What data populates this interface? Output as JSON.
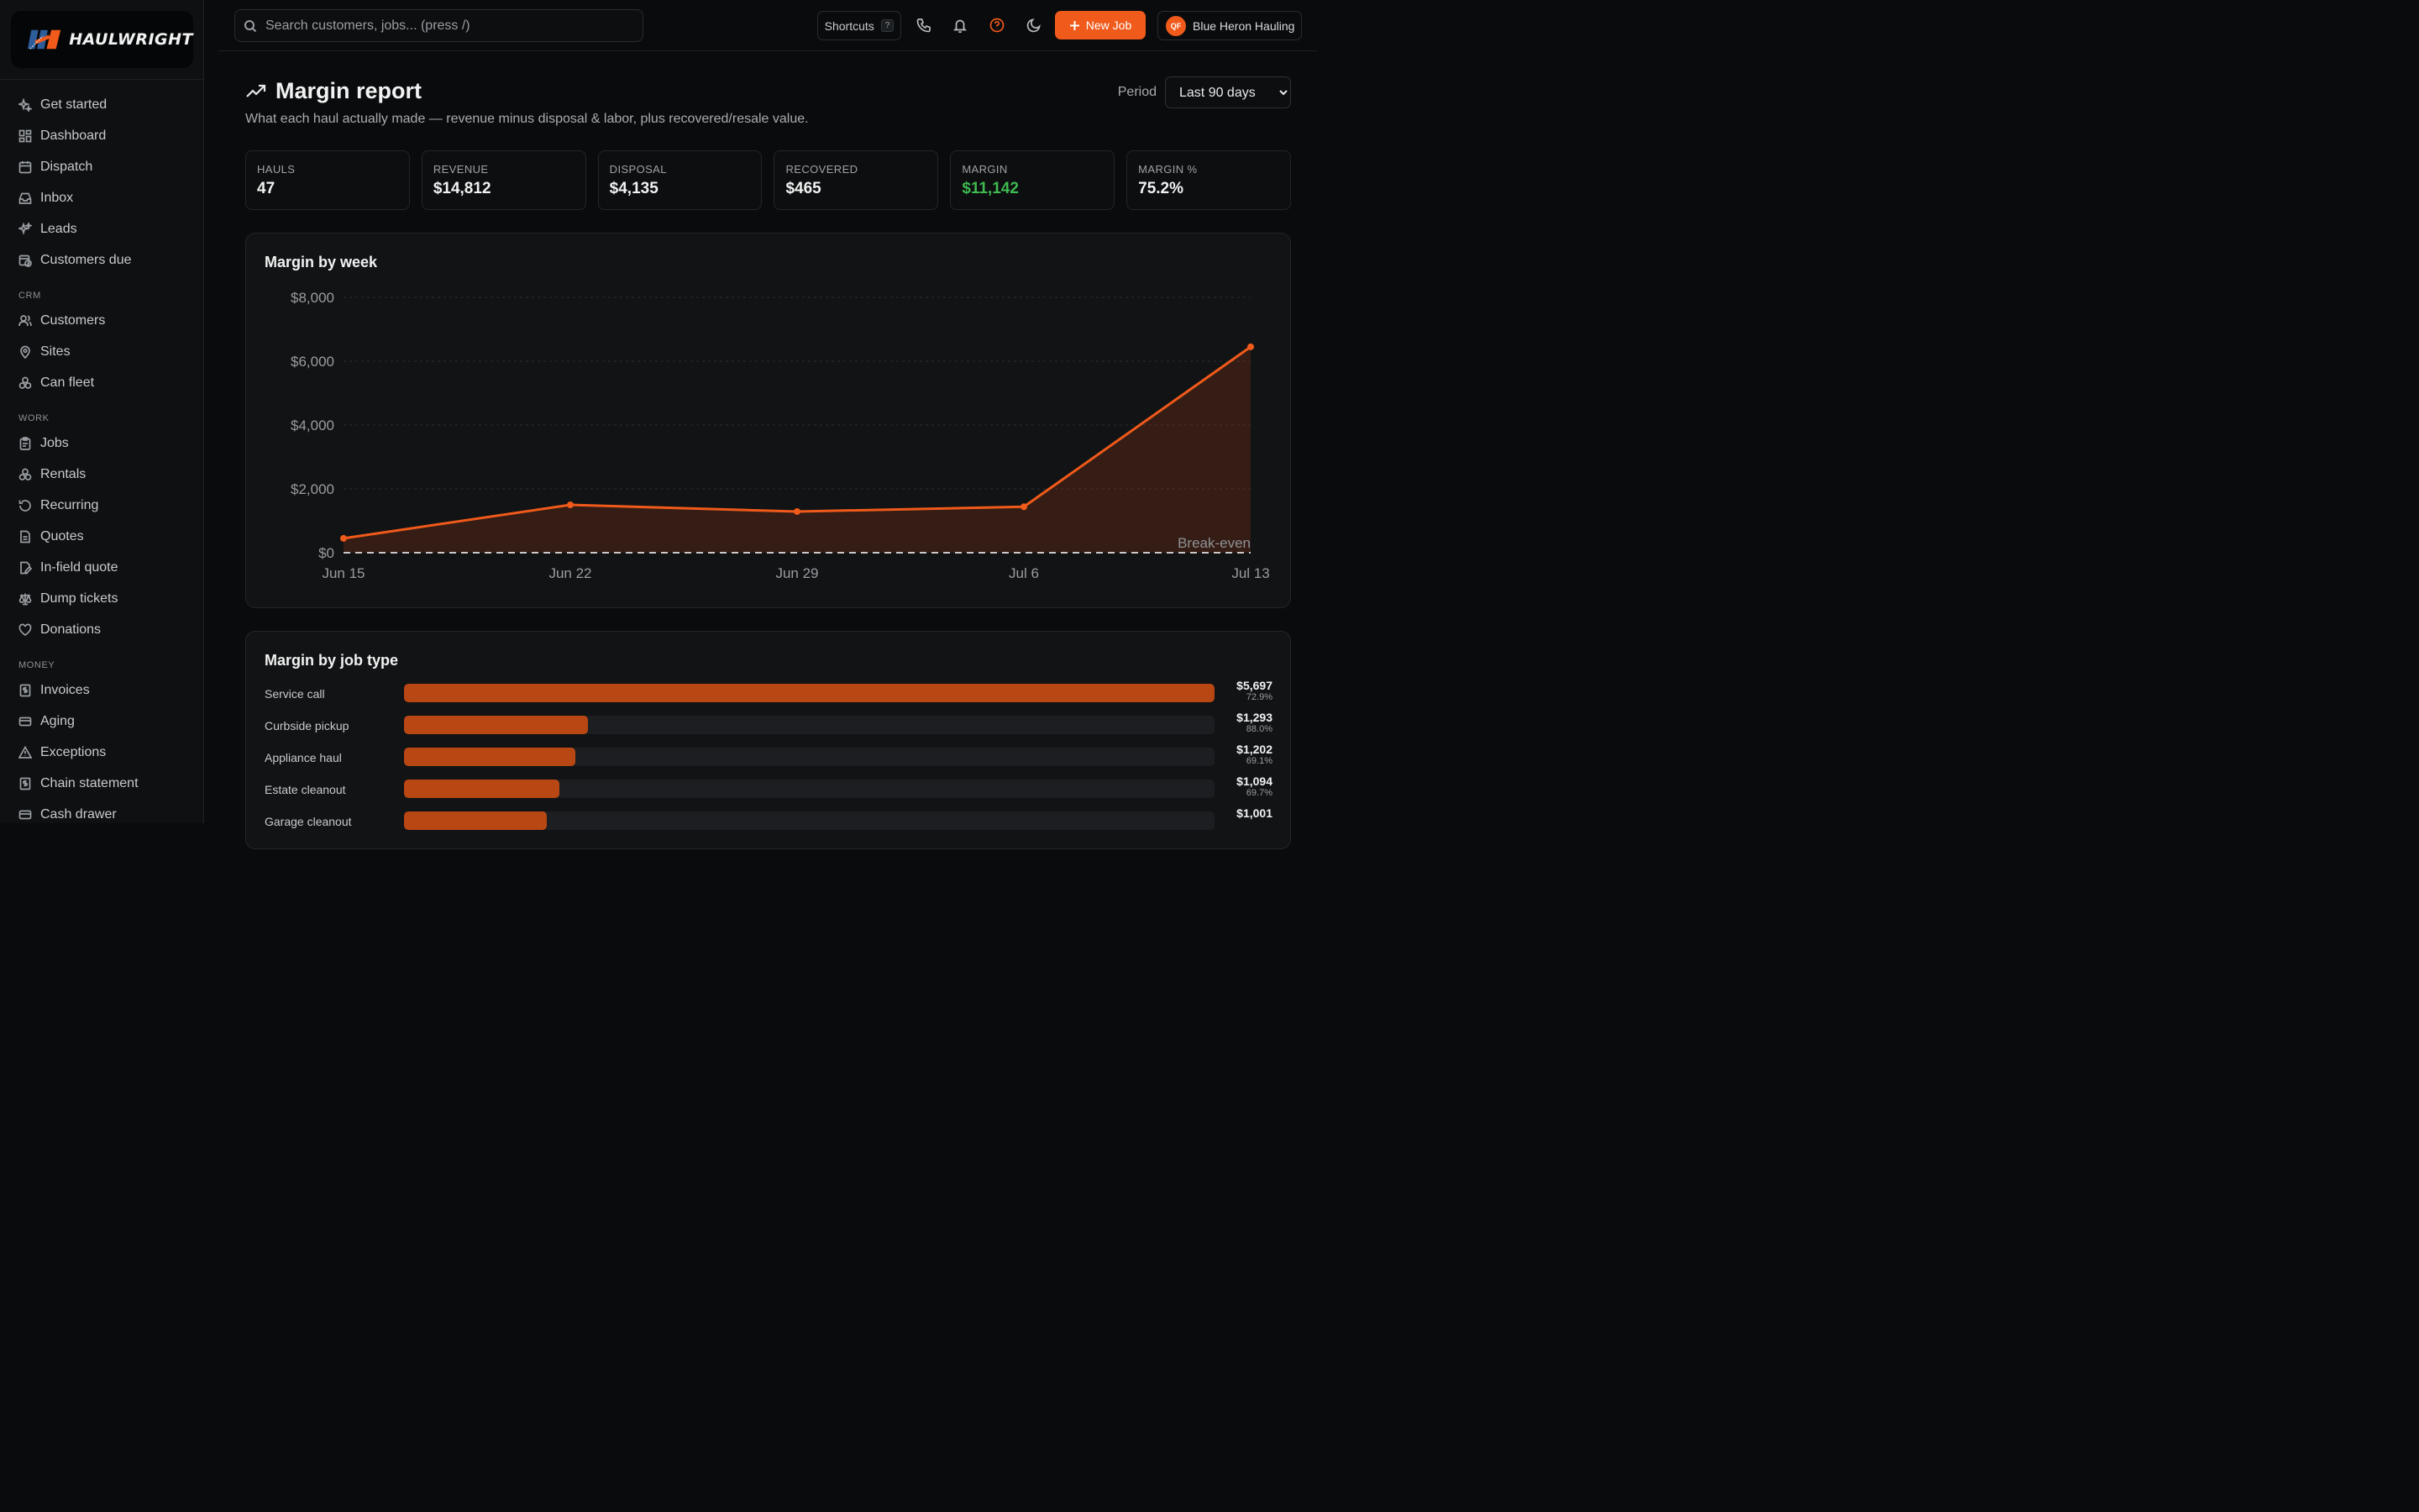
{
  "brand": {
    "name": "HAULWRIGHT",
    "accent": "#f05a1a"
  },
  "sidebar": {
    "top_items": [
      {
        "label": "Get started",
        "icon": "sparkles-icon"
      },
      {
        "label": "Dashboard",
        "icon": "dashboard-icon"
      },
      {
        "label": "Dispatch",
        "icon": "calendar-icon"
      },
      {
        "label": "Inbox",
        "icon": "inbox-icon"
      },
      {
        "label": "Leads",
        "icon": "sparkles-icon"
      },
      {
        "label": "Customers due",
        "icon": "calendar-clock-icon"
      }
    ],
    "crm_label": "CRM",
    "crm_items": [
      {
        "label": "Customers",
        "icon": "users-icon"
      },
      {
        "label": "Sites",
        "icon": "map-pin-icon"
      },
      {
        "label": "Can fleet",
        "icon": "cans-icon"
      }
    ],
    "work_label": "WORK",
    "work_items": [
      {
        "label": "Jobs",
        "icon": "clipboard-icon"
      },
      {
        "label": "Rentals",
        "icon": "cans-icon"
      },
      {
        "label": "Recurring",
        "icon": "refresh-icon"
      },
      {
        "label": "Quotes",
        "icon": "document-icon"
      },
      {
        "label": "In-field quote",
        "icon": "edit-document-icon"
      },
      {
        "label": "Dump tickets",
        "icon": "scale-icon"
      },
      {
        "label": "Donations",
        "icon": "heart-icon"
      }
    ],
    "money_label": "MONEY",
    "money_items": [
      {
        "label": "Invoices",
        "icon": "invoice-icon"
      },
      {
        "label": "Aging",
        "icon": "card-icon"
      },
      {
        "label": "Exceptions",
        "icon": "warning-icon"
      },
      {
        "label": "Chain statement",
        "icon": "invoice-icon"
      },
      {
        "label": "Cash drawer",
        "icon": "card-icon"
      }
    ]
  },
  "topbar": {
    "search_placeholder": "Search customers, jobs... (press /)",
    "shortcuts_label": "Shortcuts",
    "shortcuts_key": "?",
    "new_job_label": "New Job",
    "account_initials": "QF",
    "account_name": "Blue Heron Hauling"
  },
  "page": {
    "title": "Margin report",
    "subtitle": "What each haul actually made — revenue minus disposal & labor, plus recovered/resale value.",
    "period_label": "Period",
    "period_value": "Last 90 days"
  },
  "kpis": [
    {
      "label": "HAULS",
      "value": "47"
    },
    {
      "label": "REVENUE",
      "value": "$14,812"
    },
    {
      "label": "DISPOSAL",
      "value": "$4,135"
    },
    {
      "label": "RECOVERED",
      "value": "$465"
    },
    {
      "label": "MARGIN",
      "value": "$11,142",
      "color": "#3fb950"
    },
    {
      "label": "MARGIN %",
      "value": "75.2%"
    }
  ],
  "chart_data": [
    {
      "type": "area",
      "title": "Margin by week",
      "x": [
        "Jun 15",
        "Jun 22",
        "Jun 29",
        "Jul 6",
        "Jul 13"
      ],
      "series": [
        {
          "values": [
            450,
            1500,
            1290,
            1440,
            6450
          ]
        }
      ],
      "ylim": [
        0,
        8000
      ],
      "yticks": [
        "$0",
        "$2,000",
        "$4,000",
        "$6,000",
        "$8,000"
      ],
      "reference_line_label": "Break-even",
      "grid": true,
      "line_color": "#f05a1a"
    },
    {
      "type": "bar",
      "title": "Margin by job type",
      "categories": [
        "Service call",
        "Curbside pickup",
        "Appliance haul",
        "Estate cleanout",
        "Garage cleanout"
      ],
      "values": [
        5697,
        1293,
        1202,
        1094,
        1001
      ],
      "value_labels": [
        "$5,697",
        "$1,293",
        "$1,202",
        "$1,094",
        "$1,001"
      ],
      "pct_labels": [
        "72.9%",
        "88.0%",
        "69.1%",
        "69.7%",
        ""
      ],
      "max": 5697,
      "bar_color": "#b94713"
    }
  ]
}
